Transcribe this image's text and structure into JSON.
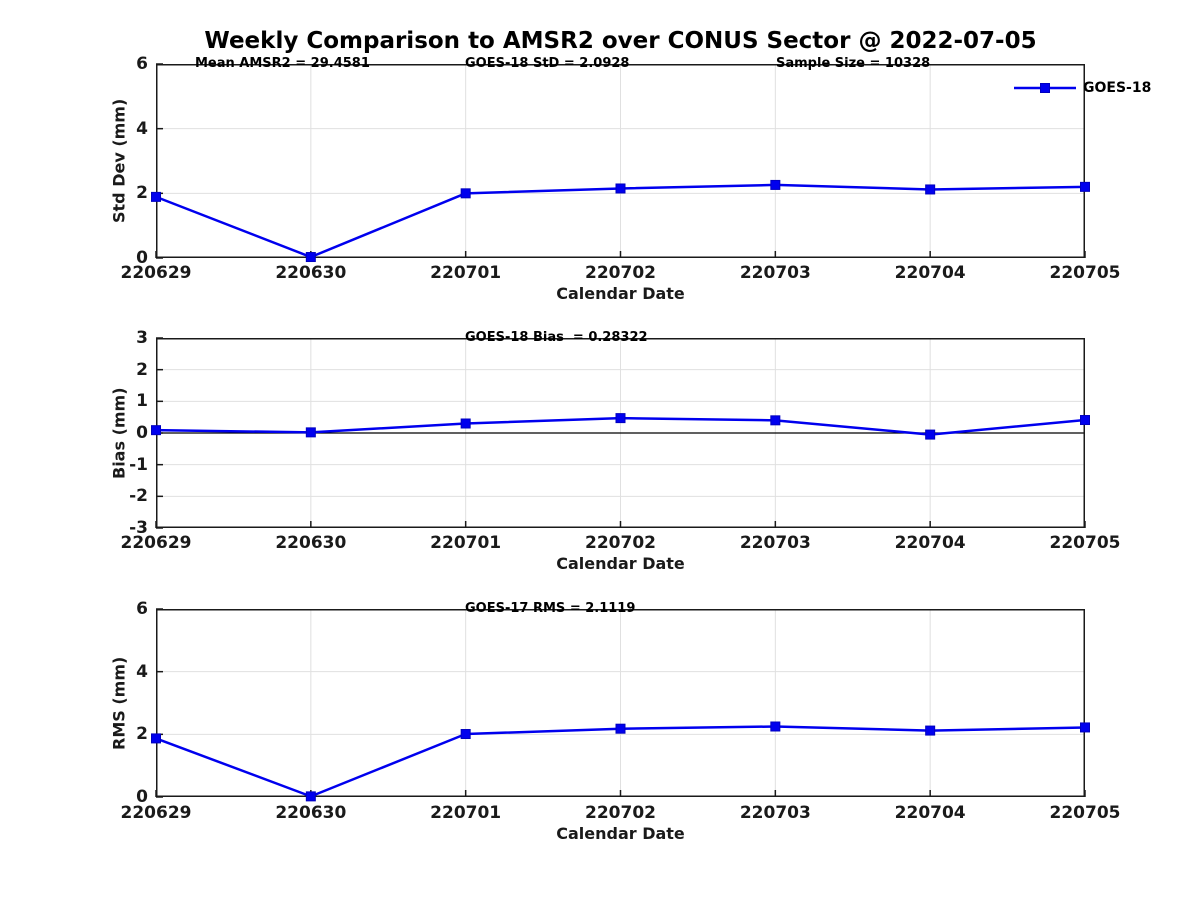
{
  "title": "Weekly Comparison to AMSR2 over CONUS Sector @ 2022-07-05",
  "xlabel": "Calendar Date",
  "legend": {
    "label": "GOES-18"
  },
  "colors": {
    "line": "#0000EE",
    "marker_fill": "#0000EE",
    "marker_edge": "#0000C0",
    "grid": "#e0e0e0",
    "axis": "#1a1a1a",
    "zero_line": "#000000",
    "text": "#1a1a1a"
  },
  "chart_data": [
    {
      "type": "line",
      "ylabel": "Std Dev (mm)",
      "xlabel": "Calendar Date",
      "categories": [
        "220629",
        "220630",
        "220701",
        "220702",
        "220703",
        "220704",
        "220705"
      ],
      "series": [
        {
          "name": "GOES-18",
          "values": [
            1.89,
            0.03,
            2.0,
            2.15,
            2.26,
            2.12,
            2.2
          ]
        }
      ],
      "ylim": [
        0,
        6
      ],
      "yticks": [
        0,
        2,
        4,
        6
      ],
      "grid": true,
      "zero_line": false,
      "legend_position": "top-right",
      "annotations": [
        "Mean AMSR2 = 29.4581",
        "GOES-18 StD = 2.0928",
        "Sample Size = 10328"
      ]
    },
    {
      "type": "line",
      "ylabel": "Bias (mm)",
      "xlabel": "Calendar Date",
      "categories": [
        "220629",
        "220630",
        "220701",
        "220702",
        "220703",
        "220704",
        "220705"
      ],
      "series": [
        {
          "name": "GOES-18",
          "values": [
            0.09,
            0.02,
            0.3,
            0.47,
            0.4,
            -0.05,
            0.41
          ]
        }
      ],
      "ylim": [
        -3,
        3
      ],
      "yticks": [
        -3,
        -2,
        -1,
        0,
        1,
        2,
        3
      ],
      "grid": true,
      "zero_line": true,
      "annotations": [
        "GOES-18 Bias  = 0.28322"
      ]
    },
    {
      "type": "line",
      "ylabel": "RMS (mm)",
      "xlabel": "Calendar Date",
      "categories": [
        "220629",
        "220630",
        "220701",
        "220702",
        "220703",
        "220704",
        "220705"
      ],
      "series": [
        {
          "name": "GOES-17",
          "values": [
            1.87,
            0.02,
            2.01,
            2.18,
            2.25,
            2.12,
            2.22
          ]
        }
      ],
      "ylim": [
        0,
        6
      ],
      "yticks": [
        0,
        2,
        4,
        6
      ],
      "grid": true,
      "zero_line": false,
      "annotations": [
        "GOES-17 RMS = 2.1119"
      ]
    }
  ]
}
